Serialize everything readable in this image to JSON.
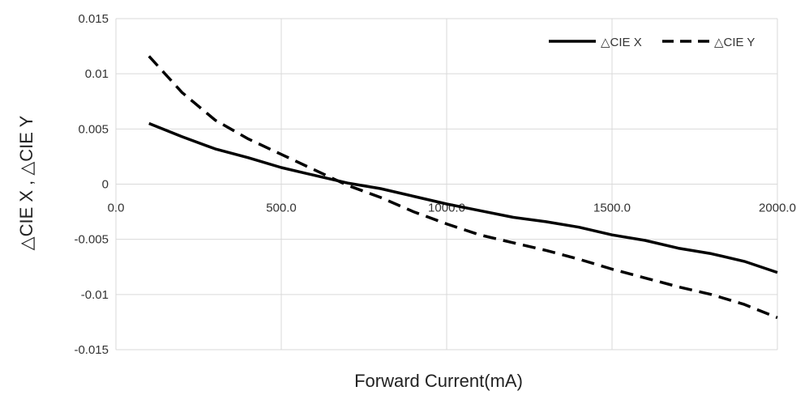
{
  "chart_data": {
    "type": "line",
    "title": "",
    "xlabel": "Forward Current(mA)",
    "ylabel": "△CIE X , △CIE Y",
    "xlim": [
      0,
      2000
    ],
    "ylim": [
      -0.015,
      0.015
    ],
    "x_ticks": [
      "0.0",
      "500.0",
      "1000.0",
      "1500.0",
      "2000.0"
    ],
    "y_ticks": [
      "0.015",
      "0.01",
      "0.005",
      "0",
      "-0.005",
      "-0.01",
      "-0.015"
    ],
    "grid": true,
    "legend_position": "top-right",
    "series": [
      {
        "name": "△CIE X",
        "style": "solid",
        "color": "#000000",
        "x": [
          100,
          200,
          300,
          400,
          500,
          600,
          700,
          800,
          900,
          1000,
          1100,
          1200,
          1300,
          1400,
          1500,
          1600,
          1700,
          1800,
          1900,
          2000
        ],
        "y": [
          0.0055,
          0.0043,
          0.0032,
          0.0024,
          0.0015,
          0.0008,
          0.0001,
          -0.0004,
          -0.0011,
          -0.0018,
          -0.0024,
          -0.003,
          -0.0034,
          -0.0039,
          -0.0046,
          -0.0051,
          -0.0058,
          -0.0063,
          -0.007,
          -0.008
        ]
      },
      {
        "name": "△CIE Y",
        "style": "dashed",
        "color": "#000000",
        "x": [
          100,
          200,
          300,
          400,
          500,
          600,
          700,
          800,
          900,
          1000,
          1100,
          1200,
          1300,
          1400,
          1500,
          1600,
          1700,
          1800,
          1900,
          2000
        ],
        "y": [
          0.0116,
          0.0083,
          0.0058,
          0.0041,
          0.0027,
          0.0013,
          -0.0001,
          -0.0012,
          -0.0025,
          -0.0036,
          -0.0046,
          -0.0053,
          -0.006,
          -0.0068,
          -0.0077,
          -0.0085,
          -0.0093,
          -0.01,
          -0.0109,
          -0.0121
        ]
      }
    ]
  }
}
